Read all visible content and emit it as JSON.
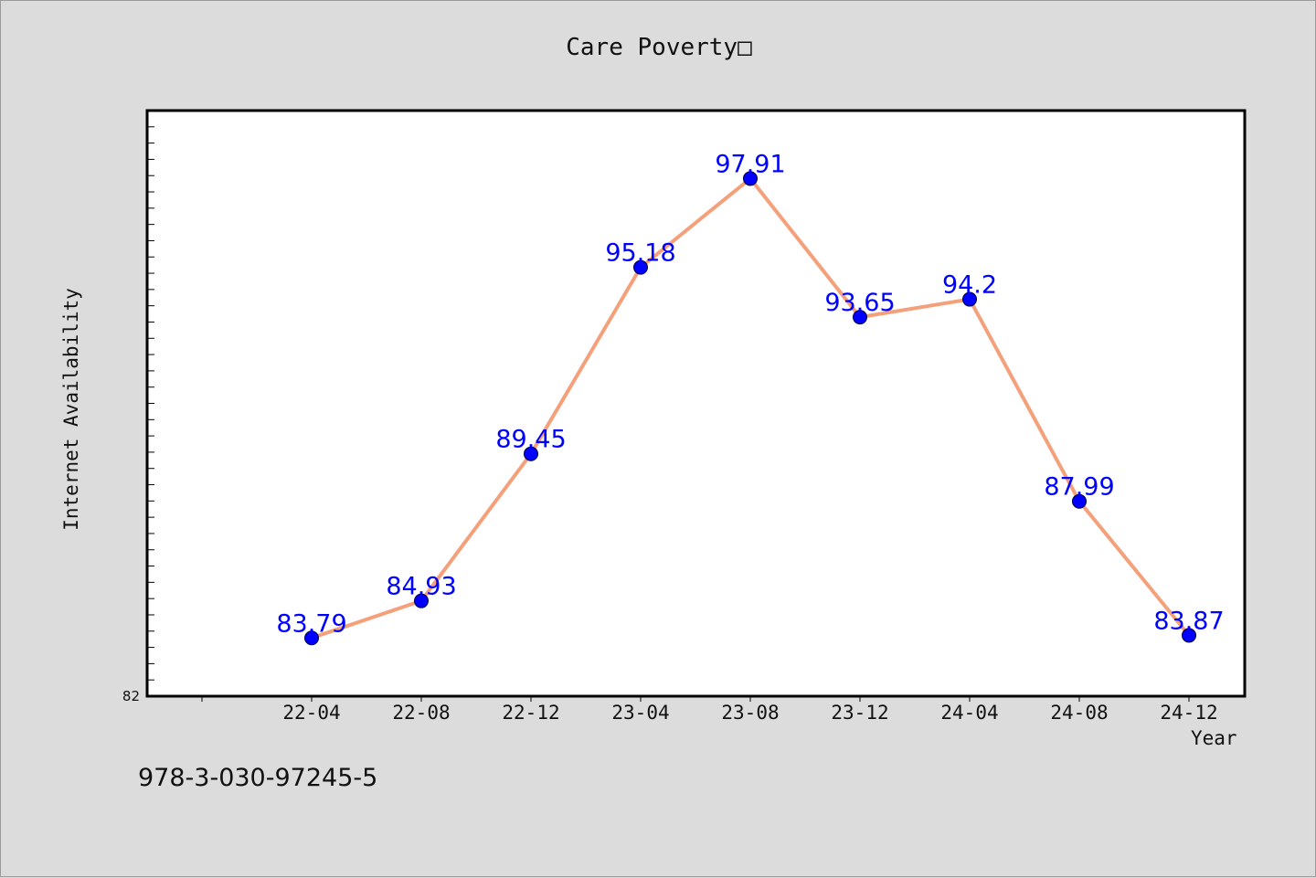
{
  "chart_data": {
    "type": "line",
    "title": "Care Poverty□",
    "xlabel": "Year",
    "ylabel": "Internet Availability",
    "categories": [
      "22-04",
      "22-08",
      "22-12",
      "23-04",
      "23-08",
      "23-12",
      "24-04",
      "24-08",
      "24-12"
    ],
    "series": [
      {
        "values": [
          83.79,
          84.93,
          89.45,
          95.18,
          97.91,
          93.65,
          94.2,
          87.99,
          83.87
        ],
        "labels": [
          "83.79",
          "84.93",
          "89.45",
          "95.18",
          "97.91",
          "93.65",
          "94.2",
          "87.99",
          "83.87"
        ]
      }
    ],
    "ylim": [
      82,
      100
    ],
    "y_tick_labels": [
      "82"
    ],
    "grid": false,
    "line_color": "#f4a07a",
    "marker_color": "#0000ff",
    "label_color": "#0000ff"
  },
  "footer_text": "978-3-030-97245-5"
}
